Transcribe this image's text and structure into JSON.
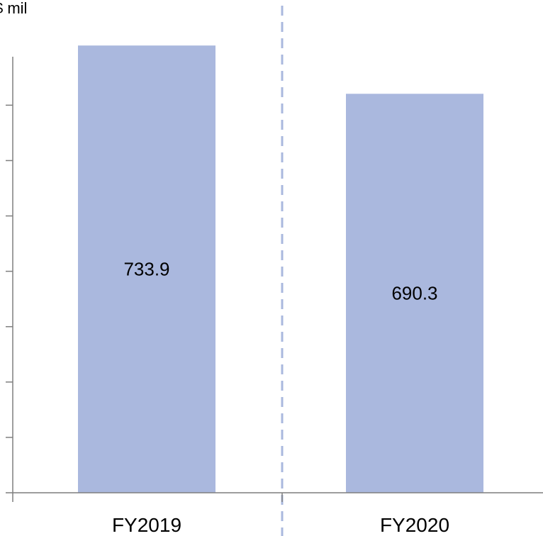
{
  "chart_data": {
    "type": "bar",
    "ylabel": "$ mil",
    "categories": [
      "FY2019",
      "FY2020"
    ],
    "values": [
      733.9,
      690.3
    ],
    "value_labels": [
      "733.9",
      "690.3"
    ],
    "ylim": [
      330,
      775
    ],
    "ytick_step": 50,
    "grid": false,
    "legend": "none",
    "divider": "dashed vertical line between categories"
  },
  "colors": {
    "bar": "#aab8de",
    "axis": "#7f7f7f",
    "divider": "#aab8de"
  }
}
